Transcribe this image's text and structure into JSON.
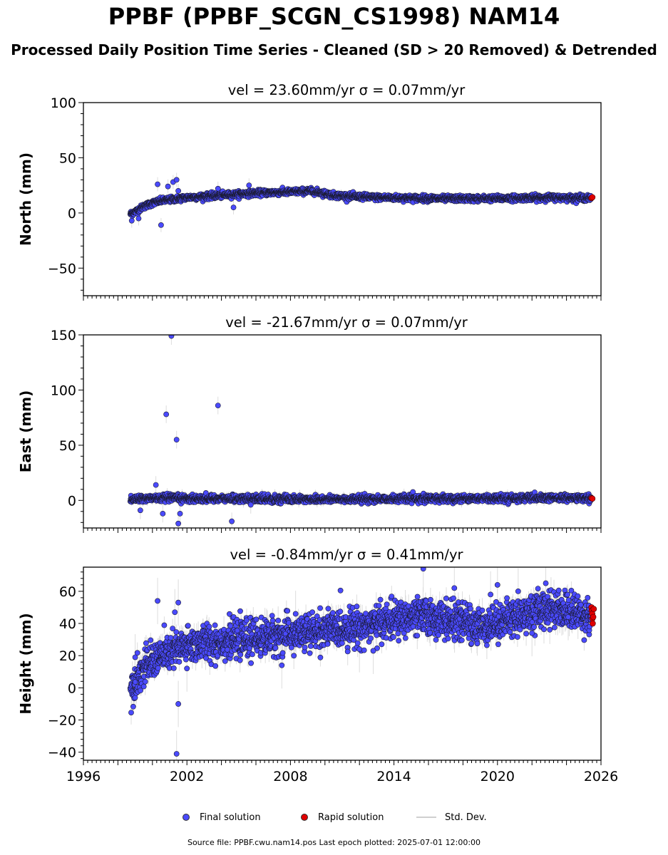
{
  "title": "PPBF (PPBF_SCGN_CS1998) NAM14",
  "subtitle": "Processed Daily Position Time Series - Cleaned (SD > 20 Removed) & Detrended",
  "footer": "Source file: PPBF.cwu.nam14.pos  Last epoch plotted: 2025-07-01 12:00:00",
  "colors": {
    "final": "#4a4aff",
    "rapid": "#e00000",
    "stddev": "#cfcfcf",
    "edge": "#1a1a2e"
  },
  "legend": {
    "final": "Final solution",
    "rapid": "Rapid solution",
    "stddev": "Std. Dev."
  },
  "chart_data": [
    {
      "type": "scatter",
      "panel": "north",
      "title": "vel = 23.60mm/yr   σ = 0.07mm/yr",
      "ylabel": "North (mm)",
      "xlim": [
        1996,
        2026
      ],
      "ylim": [
        -75,
        100
      ],
      "yticks": [
        -50,
        0,
        50,
        100
      ],
      "xticks": [],
      "trend": [
        [
          1998.7,
          -1
        ],
        [
          1999.0,
          1
        ],
        [
          1999.5,
          6
        ],
        [
          2000.0,
          9
        ],
        [
          2000.5,
          11
        ],
        [
          2001.0,
          12
        ],
        [
          2001.5,
          13
        ],
        [
          2002.0,
          14
        ],
        [
          2003.0,
          15
        ],
        [
          2004.0,
          16
        ],
        [
          2005.0,
          17
        ],
        [
          2006.0,
          18
        ],
        [
          2007.0,
          18.5
        ],
        [
          2008.0,
          19
        ],
        [
          2009.0,
          20
        ],
        [
          2009.6,
          19
        ],
        [
          2010.5,
          16
        ],
        [
          2011.5,
          15
        ],
        [
          2013.0,
          14
        ],
        [
          2015.0,
          13.5
        ],
        [
          2017.0,
          13
        ],
        [
          2019.0,
          13
        ],
        [
          2021.0,
          13.5
        ],
        [
          2023.0,
          14
        ],
        [
          2025.4,
          13.5
        ]
      ],
      "noise": 1.3,
      "outliers": [
        [
          1998.8,
          -7
        ],
        [
          1999.2,
          -5
        ],
        [
          2000.3,
          26
        ],
        [
          2000.5,
          -11
        ],
        [
          2000.9,
          24
        ],
        [
          2001.2,
          28
        ],
        [
          2001.4,
          30
        ],
        [
          2001.5,
          20
        ],
        [
          2003.8,
          22
        ],
        [
          2004.7,
          5
        ],
        [
          2005.6,
          25
        ]
      ],
      "rapid": [
        [
          2025.45,
          13.6
        ],
        [
          2025.5,
          14.2
        ]
      ],
      "stddev_range": [
        1,
        4
      ]
    },
    {
      "type": "scatter",
      "panel": "east",
      "title": "vel = -21.67mm/yr   σ = 0.07mm/yr",
      "ylabel": "East (mm)",
      "xlim": [
        1996,
        2026
      ],
      "ylim": [
        -25,
        150
      ],
      "yticks": [
        0,
        50,
        100,
        150
      ],
      "xticks": [],
      "trend": [
        [
          1998.7,
          1
        ],
        [
          2000.0,
          2
        ],
        [
          2005.0,
          1.5
        ],
        [
          2010.0,
          1
        ],
        [
          2015.0,
          1.5
        ],
        [
          2020.0,
          2
        ],
        [
          2025.4,
          2
        ]
      ],
      "noise": 1.6,
      "outliers": [
        [
          1999.3,
          -9
        ],
        [
          2000.2,
          14
        ],
        [
          2000.6,
          -12
        ],
        [
          2000.8,
          78
        ],
        [
          2001.1,
          149
        ],
        [
          2001.4,
          55
        ],
        [
          2001.5,
          -21
        ],
        [
          2001.6,
          -12
        ],
        [
          2003.8,
          86
        ],
        [
          2004.6,
          -19
        ],
        [
          2005.7,
          -4
        ]
      ],
      "rapid": [
        [
          2025.45,
          2.0
        ],
        [
          2025.5,
          1.6
        ]
      ],
      "stddev_range": [
        1,
        5
      ]
    },
    {
      "type": "scatter",
      "panel": "height",
      "title": "vel = -0.84mm/yr   σ = 0.41mm/yr",
      "ylabel": "Height (mm)",
      "xlim": [
        1996,
        2026
      ],
      "ylim": [
        -45,
        75
      ],
      "yticks": [
        -40,
        -20,
        0,
        20,
        40,
        60
      ],
      "xticks": [
        1996,
        2002,
        2008,
        2014,
        2020,
        2026
      ],
      "trend": [
        [
          1998.7,
          -2
        ],
        [
          1999.0,
          5
        ],
        [
          1999.5,
          12
        ],
        [
          2000.0,
          17
        ],
        [
          2000.5,
          20
        ],
        [
          2001.0,
          22
        ],
        [
          2002.0,
          26
        ],
        [
          2003.0,
          28
        ],
        [
          2004.0,
          29
        ],
        [
          2005.0,
          30
        ],
        [
          2006.0,
          31
        ],
        [
          2007.0,
          32
        ],
        [
          2008.0,
          33
        ],
        [
          2009.0,
          34
        ],
        [
          2010.0,
          36
        ],
        [
          2011.0,
          37
        ],
        [
          2012.0,
          38
        ],
        [
          2013.0,
          40
        ],
        [
          2014.0,
          42
        ],
        [
          2015.0,
          44
        ],
        [
          2016.0,
          44
        ],
        [
          2017.0,
          42
        ],
        [
          2018.0,
          41
        ],
        [
          2019.0,
          38
        ],
        [
          2020.0,
          41
        ],
        [
          2021.0,
          44
        ],
        [
          2022.0,
          47
        ],
        [
          2023.0,
          50
        ],
        [
          2024.0,
          48
        ],
        [
          2025.4,
          45
        ]
      ],
      "noise": 5.5,
      "outliers": [
        [
          1999.0,
          19
        ],
        [
          2000.3,
          54
        ],
        [
          2001.3,
          47
        ],
        [
          2001.4,
          -41
        ],
        [
          2001.5,
          53
        ],
        [
          2001.5,
          -10
        ],
        [
          2002.0,
          12
        ],
        [
          2007.5,
          14
        ],
        [
          2008.3,
          46
        ],
        [
          2012.0,
          24
        ],
        [
          2012.8,
          23
        ],
        [
          2015.7,
          74
        ],
        [
          2017.5,
          62
        ],
        [
          2019.6,
          58
        ],
        [
          2020.0,
          64
        ],
        [
          2021.2,
          60
        ],
        [
          2022.0,
          34
        ],
        [
          2022.8,
          65
        ],
        [
          2024.1,
          44
        ]
      ],
      "rapid": [
        [
          2025.45,
          50
        ],
        [
          2025.47,
          48
        ],
        [
          2025.49,
          46
        ],
        [
          2025.5,
          43
        ],
        [
          2025.52,
          40
        ],
        [
          2025.55,
          44
        ],
        [
          2025.58,
          49
        ]
      ],
      "stddev_range": [
        3,
        9
      ]
    }
  ]
}
